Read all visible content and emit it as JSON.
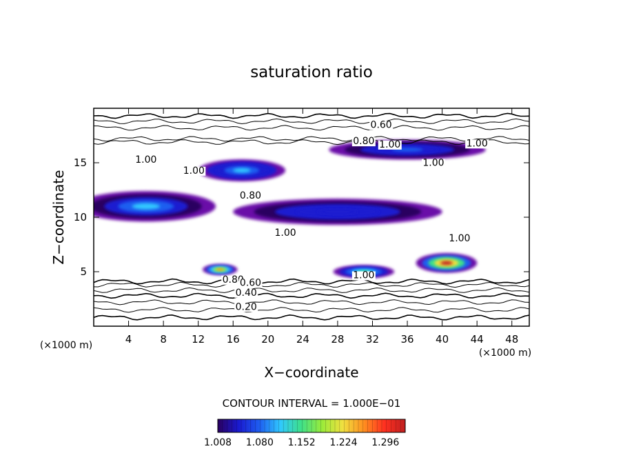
{
  "chart_data": {
    "type": "heatmap",
    "title": "saturation ratio",
    "xlabel": "X−coordinate",
    "ylabel": "Z−coordinate",
    "x_unit": "(×1000 m)",
    "y_unit": "(×1000 m)",
    "xlim": [
      0,
      50
    ],
    "ylim": [
      0,
      20
    ],
    "x_ticks": [
      "4",
      "8",
      "12",
      "16",
      "20",
      "24",
      "28",
      "32",
      "36",
      "40",
      "44",
      "48"
    ],
    "x_tick_values": [
      4,
      8,
      12,
      16,
      20,
      24,
      28,
      32,
      36,
      40,
      44,
      48
    ],
    "y_ticks": [
      "5",
      "10",
      "15"
    ],
    "y_tick_values": [
      5,
      10,
      15
    ],
    "contour_interval_label": "CONTOUR INTERVAL = 1.000E−01",
    "colorbar": {
      "min": 1.008,
      "max": 1.33,
      "ticks": [
        "1.008",
        "1.080",
        "1.152",
        "1.224",
        "1.296"
      ],
      "colors": [
        "#2a0060",
        "#1a1ad0",
        "#1e5ef0",
        "#30c8ff",
        "#3ee08a",
        "#9aeb3a",
        "#f0e040",
        "#ff9020",
        "#ff3020",
        "#c02020"
      ]
    },
    "contour_labels": [
      {
        "text": "0.60",
        "x": 33,
        "z": 18.2
      },
      {
        "text": "0.80",
        "x": 31,
        "z": 16.7
      },
      {
        "text": "1.00",
        "x": 6,
        "z": 15.0
      },
      {
        "text": "1.00",
        "x": 11.5,
        "z": 14.0
      },
      {
        "text": "1.00",
        "x": 34,
        "z": 16.4
      },
      {
        "text": "1.00",
        "x": 39,
        "z": 14.7
      },
      {
        "text": "1.00",
        "x": 44,
        "z": 16.5
      },
      {
        "text": "0.80",
        "x": 18,
        "z": 11.7
      },
      {
        "text": "1.00",
        "x": 22,
        "z": 8.3
      },
      {
        "text": "1.00",
        "x": 42,
        "z": 7.8
      },
      {
        "text": "1.00",
        "x": 31,
        "z": 4.4
      },
      {
        "text": "0.80",
        "x": 16,
        "z": 4.0
      },
      {
        "text": "0.60",
        "x": 18,
        "z": 3.7
      },
      {
        "text": "0.40",
        "x": 17.5,
        "z": 2.8
      },
      {
        "text": "0.20",
        "x": 17.5,
        "z": 1.5
      }
    ],
    "supersaturated_regions": [
      {
        "cx": 6,
        "cz": 11.0,
        "rx": 8,
        "rz": 1.4,
        "peak": 1.1
      },
      {
        "cx": 17,
        "cz": 14.3,
        "rx": 5,
        "rz": 1.0,
        "peak": 1.12
      },
      {
        "cx": 36,
        "cz": 16.2,
        "rx": 9,
        "rz": 0.9,
        "peak": 1.08
      },
      {
        "cx": 28,
        "cz": 10.5,
        "rx": 12,
        "rz": 1.2,
        "peak": 1.06
      },
      {
        "cx": 14.5,
        "cz": 5.2,
        "rx": 2,
        "rz": 0.5,
        "peak": 1.25
      },
      {
        "cx": 40.5,
        "cz": 5.8,
        "rx": 3.5,
        "rz": 0.9,
        "peak": 1.32
      },
      {
        "cx": 31,
        "cz": 5.0,
        "rx": 3.5,
        "rz": 0.6,
        "peak": 1.15
      }
    ]
  }
}
